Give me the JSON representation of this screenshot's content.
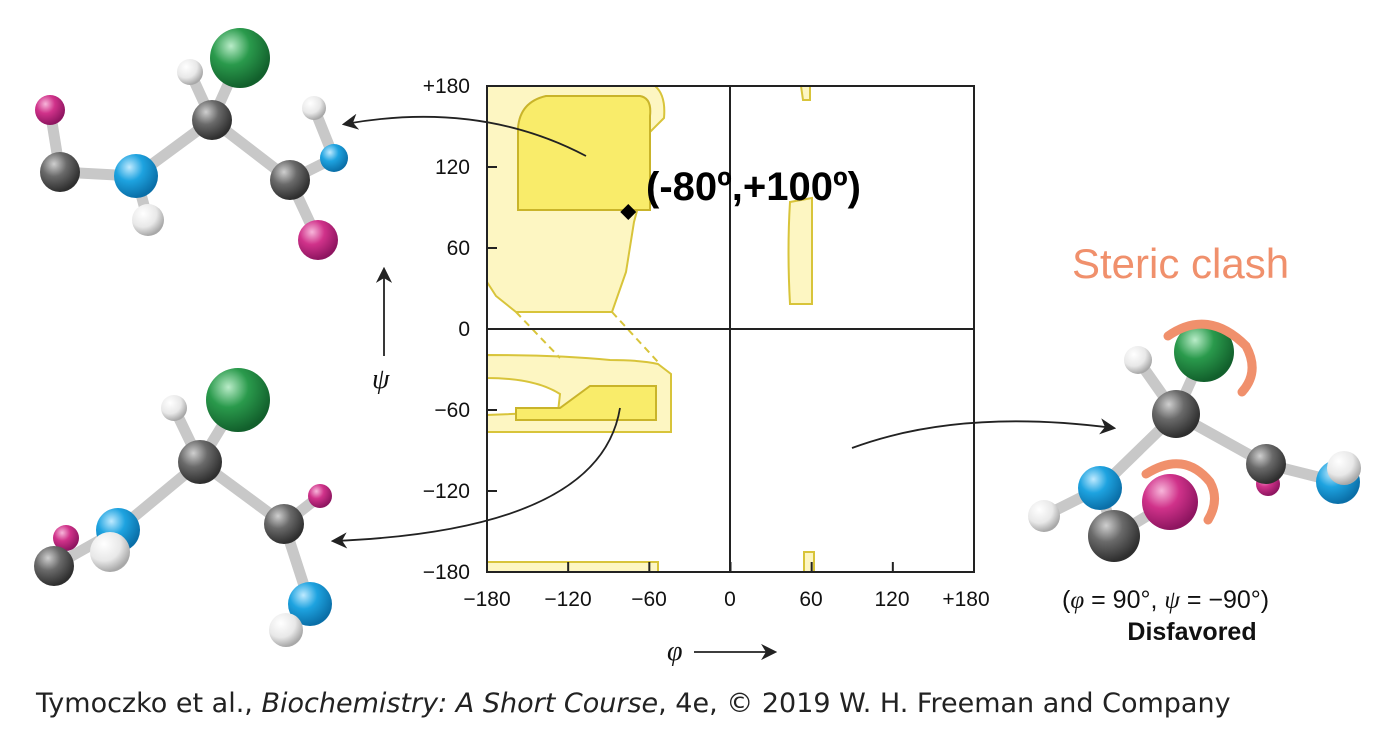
{
  "plot": {
    "x_axis_symbol": "φ",
    "y_axis_symbol": "ψ",
    "x_ticks": [
      "−180",
      "−120",
      "−60",
      "0",
      "60",
      "120",
      "+180"
    ],
    "y_ticks": [
      "+180",
      "120",
      "60",
      "0",
      "−60",
      "−120",
      "−180"
    ],
    "marked_point": {
      "phi": -80,
      "psi": 100,
      "label": "(-80º,+100º)"
    }
  },
  "steric": {
    "title": "Steric clash",
    "condition_open": "(",
    "phi_symbol": "φ",
    "phi_value": " = 90°, ",
    "psi_symbol": "ψ",
    "psi_value": " = −90°)",
    "verdict": "Disfavored",
    "colors": {
      "clash": "#f0906c"
    }
  },
  "atom_colors": {
    "carbon": "#5a5a5a",
    "nitrogen": "#1ea3e0",
    "oxygen": "#d0328a",
    "hydrogen": "#eeeeee",
    "side_chain": "#2a9a4c"
  },
  "region_colors": {
    "allowed_fill": "#fdf6c2",
    "favored_fill": "#f9ec6a",
    "outline": "#d8c43a"
  },
  "credit": {
    "authors": "Tymoczko et al., ",
    "book": "Biochemistry: A Short Course",
    "edition": ", 4e, © 2019 W. H. Freeman and Company"
  }
}
